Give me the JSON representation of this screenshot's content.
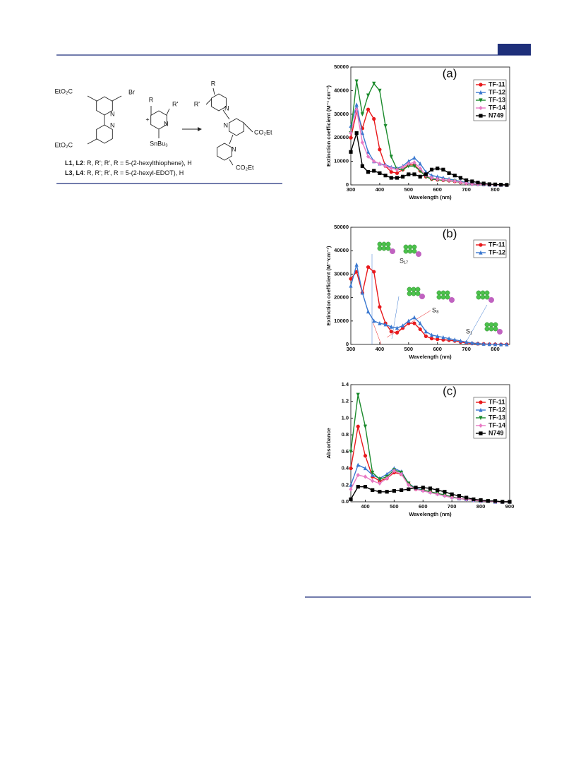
{
  "scheme": {
    "atoms": [
      "EtO₂C",
      "Br",
      "N",
      "N",
      "EtO₂C",
      "+",
      "R",
      "R'",
      "N",
      "SnBu₃",
      "R",
      "R'",
      "N",
      "N",
      "CO₂Et",
      "N",
      "CO₂Et"
    ],
    "ligand_lines": [
      {
        "ligands": "L1, L2",
        "text": ": R, R'; R', R = 5-(2-hexylthiophene), H"
      },
      {
        "ligands": "L3, L4",
        "text": ": R, R'; R', R = 5-(2-hexyl-EDOT), H"
      }
    ]
  },
  "chart_data": [
    {
      "type": "line",
      "panel": "(a)",
      "x_label": "Wavelength (nm)",
      "y_label": "Extinction coefficient (M⁻¹ cm⁻¹)",
      "xlim": [
        300,
        850
      ],
      "xticks": [
        300,
        400,
        500,
        600,
        700,
        800
      ],
      "ylim": [
        0,
        50000
      ],
      "yticks": [
        0,
        10000,
        20000,
        30000,
        40000,
        50000
      ],
      "x": [
        300,
        320,
        340,
        360,
        380,
        400,
        420,
        440,
        460,
        480,
        500,
        520,
        540,
        560,
        580,
        600,
        620,
        640,
        660,
        680,
        700,
        720,
        740,
        760,
        780,
        800,
        820,
        840
      ],
      "series": [
        {
          "name": "TF-11",
          "color": "#e8191c",
          "marker": "circle",
          "values": [
            20000,
            31000,
            24000,
            32000,
            28000,
            15000,
            8000,
            5500,
            5000,
            6500,
            8500,
            8500,
            6000,
            3500,
            2500,
            2200,
            2000,
            1800,
            1500,
            1000,
            700,
            400,
            300,
            200,
            100,
            50,
            0,
            0
          ]
        },
        {
          "name": "TF-12",
          "color": "#3a78d0",
          "marker": "triangle",
          "values": [
            25000,
            34000,
            22000,
            14000,
            10000,
            9000,
            8500,
            7500,
            7000,
            8000,
            10000,
            11500,
            9000,
            5500,
            4000,
            3500,
            3000,
            2500,
            2000,
            1500,
            1000,
            600,
            400,
            200,
            100,
            50,
            0,
            0
          ]
        },
        {
          "name": "TF-13",
          "color": "#1b8a2c",
          "marker": "down",
          "values": [
            22000,
            44000,
            30000,
            38000,
            43000,
            40000,
            25000,
            12000,
            6500,
            6500,
            8000,
            8000,
            6000,
            3500,
            2500,
            2200,
            2000,
            1800,
            1500,
            1000,
            700,
            400,
            300,
            200,
            100,
            50,
            0,
            0
          ]
        },
        {
          "name": "TF-14",
          "color": "#e87ac4",
          "marker": "diamond",
          "values": [
            22000,
            32000,
            18000,
            12000,
            10000,
            9000,
            8000,
            7000,
            6500,
            7500,
            9000,
            9500,
            7000,
            4000,
            3000,
            2500,
            2200,
            2000,
            1600,
            1100,
            700,
            400,
            300,
            200,
            100,
            50,
            0,
            0
          ]
        },
        {
          "name": "N749",
          "color": "#000000",
          "marker": "square",
          "values": [
            14000,
            22000,
            8000,
            5500,
            6000,
            5000,
            4000,
            3000,
            3000,
            3500,
            4500,
            4500,
            3500,
            4500,
            6500,
            7000,
            6500,
            5000,
            4000,
            3000,
            2000,
            1500,
            1000,
            600,
            300,
            200,
            100,
            0
          ]
        }
      ]
    },
    {
      "type": "line",
      "panel": "(b)",
      "x_label": "Wavelength (nm)",
      "y_label": "Extinction coefficient (M⁻¹cm⁻¹)",
      "xlim": [
        300,
        850
      ],
      "xticks": [
        300,
        400,
        500,
        600,
        700,
        800
      ],
      "ylim": [
        0,
        50000
      ],
      "yticks": [
        0,
        10000,
        20000,
        30000,
        40000,
        50000
      ],
      "annotations": [
        "S₁₇",
        "S₈",
        "S₁"
      ],
      "x": [
        300,
        320,
        340,
        360,
        380,
        400,
        420,
        440,
        460,
        480,
        500,
        520,
        540,
        560,
        580,
        600,
        620,
        640,
        660,
        680,
        700,
        720,
        740,
        760,
        780,
        800,
        820,
        840
      ],
      "series": [
        {
          "name": "TF-11",
          "color": "#e8191c",
          "marker": "circle",
          "values": [
            28000,
            31000,
            22000,
            33000,
            31000,
            16000,
            9000,
            5500,
            5000,
            7000,
            9000,
            9000,
            6500,
            3500,
            2500,
            2200,
            2000,
            1800,
            1500,
            1000,
            700,
            400,
            300,
            200,
            100,
            50,
            0,
            0
          ]
        },
        {
          "name": "TF-12",
          "color": "#3a78d0",
          "marker": "triangle",
          "values": [
            25000,
            34000,
            22000,
            14000,
            10000,
            9000,
            8500,
            7500,
            7000,
            8000,
            10000,
            11500,
            9000,
            5500,
            4000,
            3500,
            3000,
            2500,
            2000,
            1500,
            1000,
            600,
            400,
            200,
            100,
            50,
            0,
            0
          ]
        }
      ]
    },
    {
      "type": "line",
      "panel": "(c)",
      "x_label": "Wavelength (nm)",
      "y_label": "Absorbance",
      "xlim": [
        350,
        900
      ],
      "xticks": [
        400,
        500,
        600,
        700,
        800,
        900
      ],
      "ylim": [
        0,
        1.4
      ],
      "yticks": [
        {
          "value": 0,
          "label": "0.0"
        },
        0.2,
        0.4,
        0.6,
        0.8,
        {
          "value": 1,
          "label": "1.0"
        },
        1.2,
        1.4
      ],
      "x": [
        350,
        375,
        400,
        425,
        450,
        475,
        500,
        525,
        550,
        575,
        600,
        625,
        650,
        675,
        700,
        725,
        750,
        775,
        800,
        825,
        850,
        875,
        900
      ],
      "series": [
        {
          "name": "TF-11",
          "color": "#e8191c",
          "marker": "circle",
          "values": [
            0.4,
            0.9,
            0.55,
            0.3,
            0.25,
            0.28,
            0.35,
            0.33,
            0.22,
            0.15,
            0.14,
            0.12,
            0.1,
            0.08,
            0.06,
            0.04,
            0.03,
            0.02,
            0.01,
            0.01,
            0,
            0,
            0
          ]
        },
        {
          "name": "TF-12",
          "color": "#3a78d0",
          "marker": "triangle",
          "values": [
            0.2,
            0.44,
            0.4,
            0.32,
            0.28,
            0.33,
            0.4,
            0.36,
            0.22,
            0.16,
            0.14,
            0.12,
            0.1,
            0.08,
            0.06,
            0.04,
            0.03,
            0.02,
            0.01,
            0.01,
            0,
            0,
            0
          ]
        },
        {
          "name": "TF-13",
          "color": "#1b8a2c",
          "marker": "down",
          "values": [
            0.6,
            1.28,
            0.9,
            0.35,
            0.27,
            0.3,
            0.38,
            0.35,
            0.22,
            0.15,
            0.14,
            0.12,
            0.1,
            0.08,
            0.06,
            0.04,
            0.03,
            0.02,
            0.01,
            0.01,
            0,
            0,
            0
          ]
        },
        {
          "name": "TF-14",
          "color": "#e87ac4",
          "marker": "diamond",
          "values": [
            0.15,
            0.32,
            0.3,
            0.25,
            0.22,
            0.28,
            0.37,
            0.33,
            0.2,
            0.15,
            0.13,
            0.11,
            0.09,
            0.07,
            0.05,
            0.04,
            0.03,
            0.02,
            0.01,
            0.01,
            0,
            0,
            0
          ]
        },
        {
          "name": "N749",
          "color": "#000000",
          "marker": "square",
          "values": [
            0.03,
            0.18,
            0.18,
            0.14,
            0.12,
            0.12,
            0.13,
            0.14,
            0.15,
            0.17,
            0.17,
            0.16,
            0.14,
            0.12,
            0.09,
            0.07,
            0.05,
            0.03,
            0.02,
            0.01,
            0.01,
            0,
            0
          ]
        }
      ]
    }
  ]
}
